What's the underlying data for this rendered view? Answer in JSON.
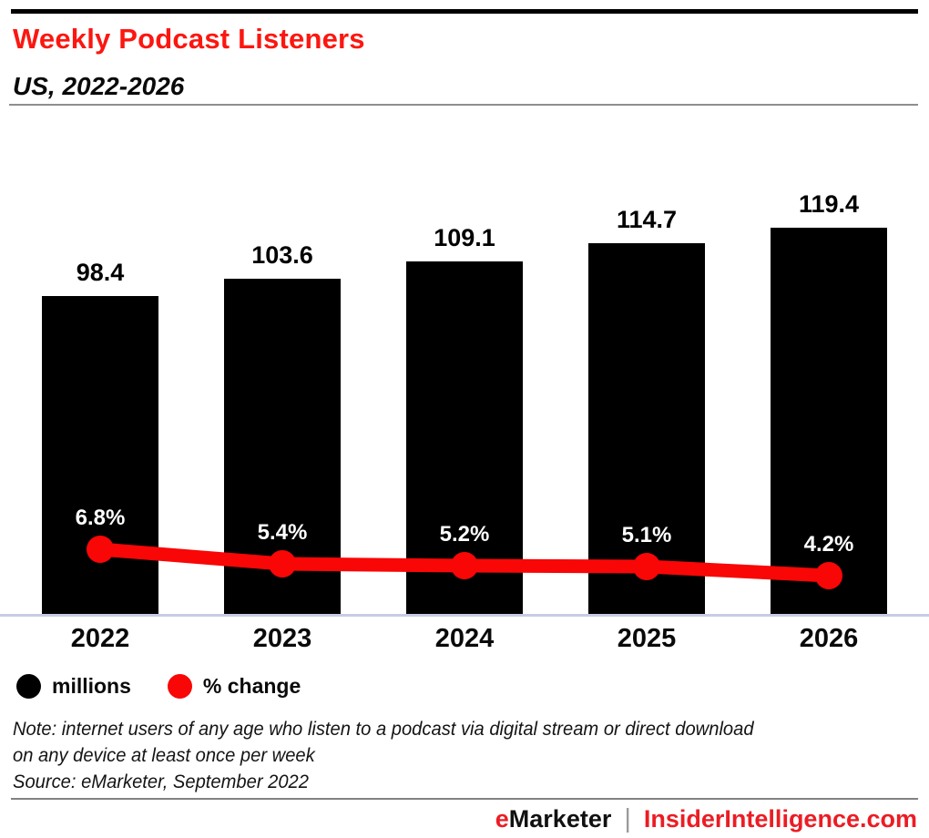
{
  "colors": {
    "title_red": "#fb1710",
    "chart_red": "#f90606",
    "bar_black": "#000000",
    "footer_red": "#ec1c24",
    "axis_line": "#c7cde4",
    "line_label_white": "#ffffff"
  },
  "header": {
    "title": "Weekly Podcast Listeners",
    "subtitle": "US, 2022-2026"
  },
  "chart_data": {
    "type": "bar",
    "combo": "bar+line",
    "title": "Weekly Podcast Listeners",
    "subtitle": "US, 2022-2026",
    "xlabel": "",
    "ylabel": "",
    "grid": false,
    "categories": [
      "2022",
      "2023",
      "2024",
      "2025",
      "2026"
    ],
    "series": [
      {
        "name": "millions",
        "type": "bar",
        "color": "#000000",
        "values": [
          98.4,
          103.6,
          109.1,
          114.7,
          119.4
        ],
        "labels": [
          "98.4",
          "103.6",
          "109.1",
          "114.7",
          "119.4"
        ],
        "label_position": "above-bar"
      },
      {
        "name": "% change",
        "type": "line",
        "color": "#f90606",
        "values": [
          6.8,
          5.4,
          5.2,
          5.1,
          4.2
        ],
        "labels": [
          "6.8%",
          "5.4%",
          "5.2%",
          "5.1%",
          "4.2%"
        ],
        "label_position": "above-point",
        "label_color": "#ffffff"
      }
    ],
    "legend": [
      {
        "label": "millions",
        "color": "#000000"
      },
      {
        "label": "% change",
        "color": "#f90606"
      }
    ],
    "legend_position": "bottom-left"
  },
  "footnotes": {
    "note_lines": [
      "Note: internet users of any age who listen to a podcast via digital stream or direct download",
      "on any device at least once per week"
    ],
    "source": "Source: eMarketer, September 2022"
  },
  "footer": {
    "brand_first_letter": "e",
    "brand_rest": "Marketer",
    "separator": "|",
    "site": "InsiderIntelligence.com"
  }
}
